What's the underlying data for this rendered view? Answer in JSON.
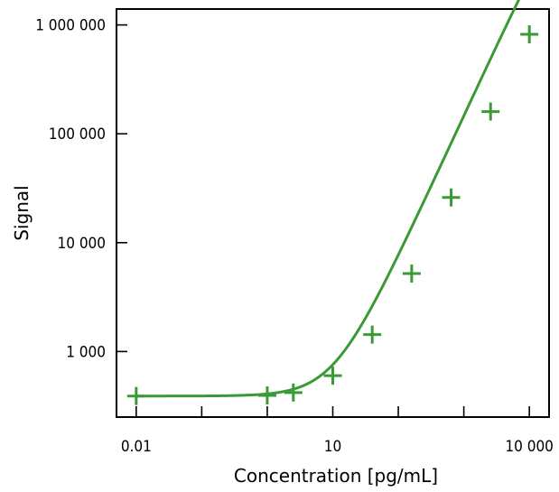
{
  "chart_data": {
    "type": "scatter",
    "title": "",
    "xlabel": "Concentration  [pg/mL]",
    "ylabel": "Signal",
    "x_scale": "log",
    "y_scale": "log",
    "xlim": [
      0.005,
      20000
    ],
    "ylim": [
      250,
      1400000
    ],
    "grid": false,
    "x_ticks": [
      {
        "value": 0.01,
        "label": "0.01"
      },
      {
        "value": 0.1,
        "label": ""
      },
      {
        "value": 1,
        "label": ""
      },
      {
        "value": 10,
        "label": "10"
      },
      {
        "value": 100,
        "label": ""
      },
      {
        "value": 1000,
        "label": ""
      },
      {
        "value": 10000,
        "label": "10 000"
      }
    ],
    "y_ticks": [
      {
        "value": 1000,
        "label": "1 000"
      },
      {
        "value": 10000,
        "label": "10 000"
      },
      {
        "value": 100000,
        "label": "100 000"
      },
      {
        "value": 1000000,
        "label": "1 000 000"
      }
    ],
    "color": "#3a9a35",
    "series": [
      {
        "marker": "plus",
        "points": [
          {
            "x": 0.01,
            "y": 390
          },
          {
            "x": 1,
            "y": 395
          },
          {
            "x": 2.5,
            "y": 420
          },
          {
            "x": 10,
            "y": 600
          },
          {
            "x": 40,
            "y": 1430
          },
          {
            "x": 160,
            "y": 5200
          },
          {
            "x": 640,
            "y": 26000
          },
          {
            "x": 2560,
            "y": 160000
          },
          {
            "x": 10000,
            "y": 820000
          }
        ]
      }
    ],
    "fit_curve": {
      "model": "4PL",
      "bottom": 390,
      "top": 30000000,
      "ec50": 60000,
      "hill": 1.3
    }
  }
}
